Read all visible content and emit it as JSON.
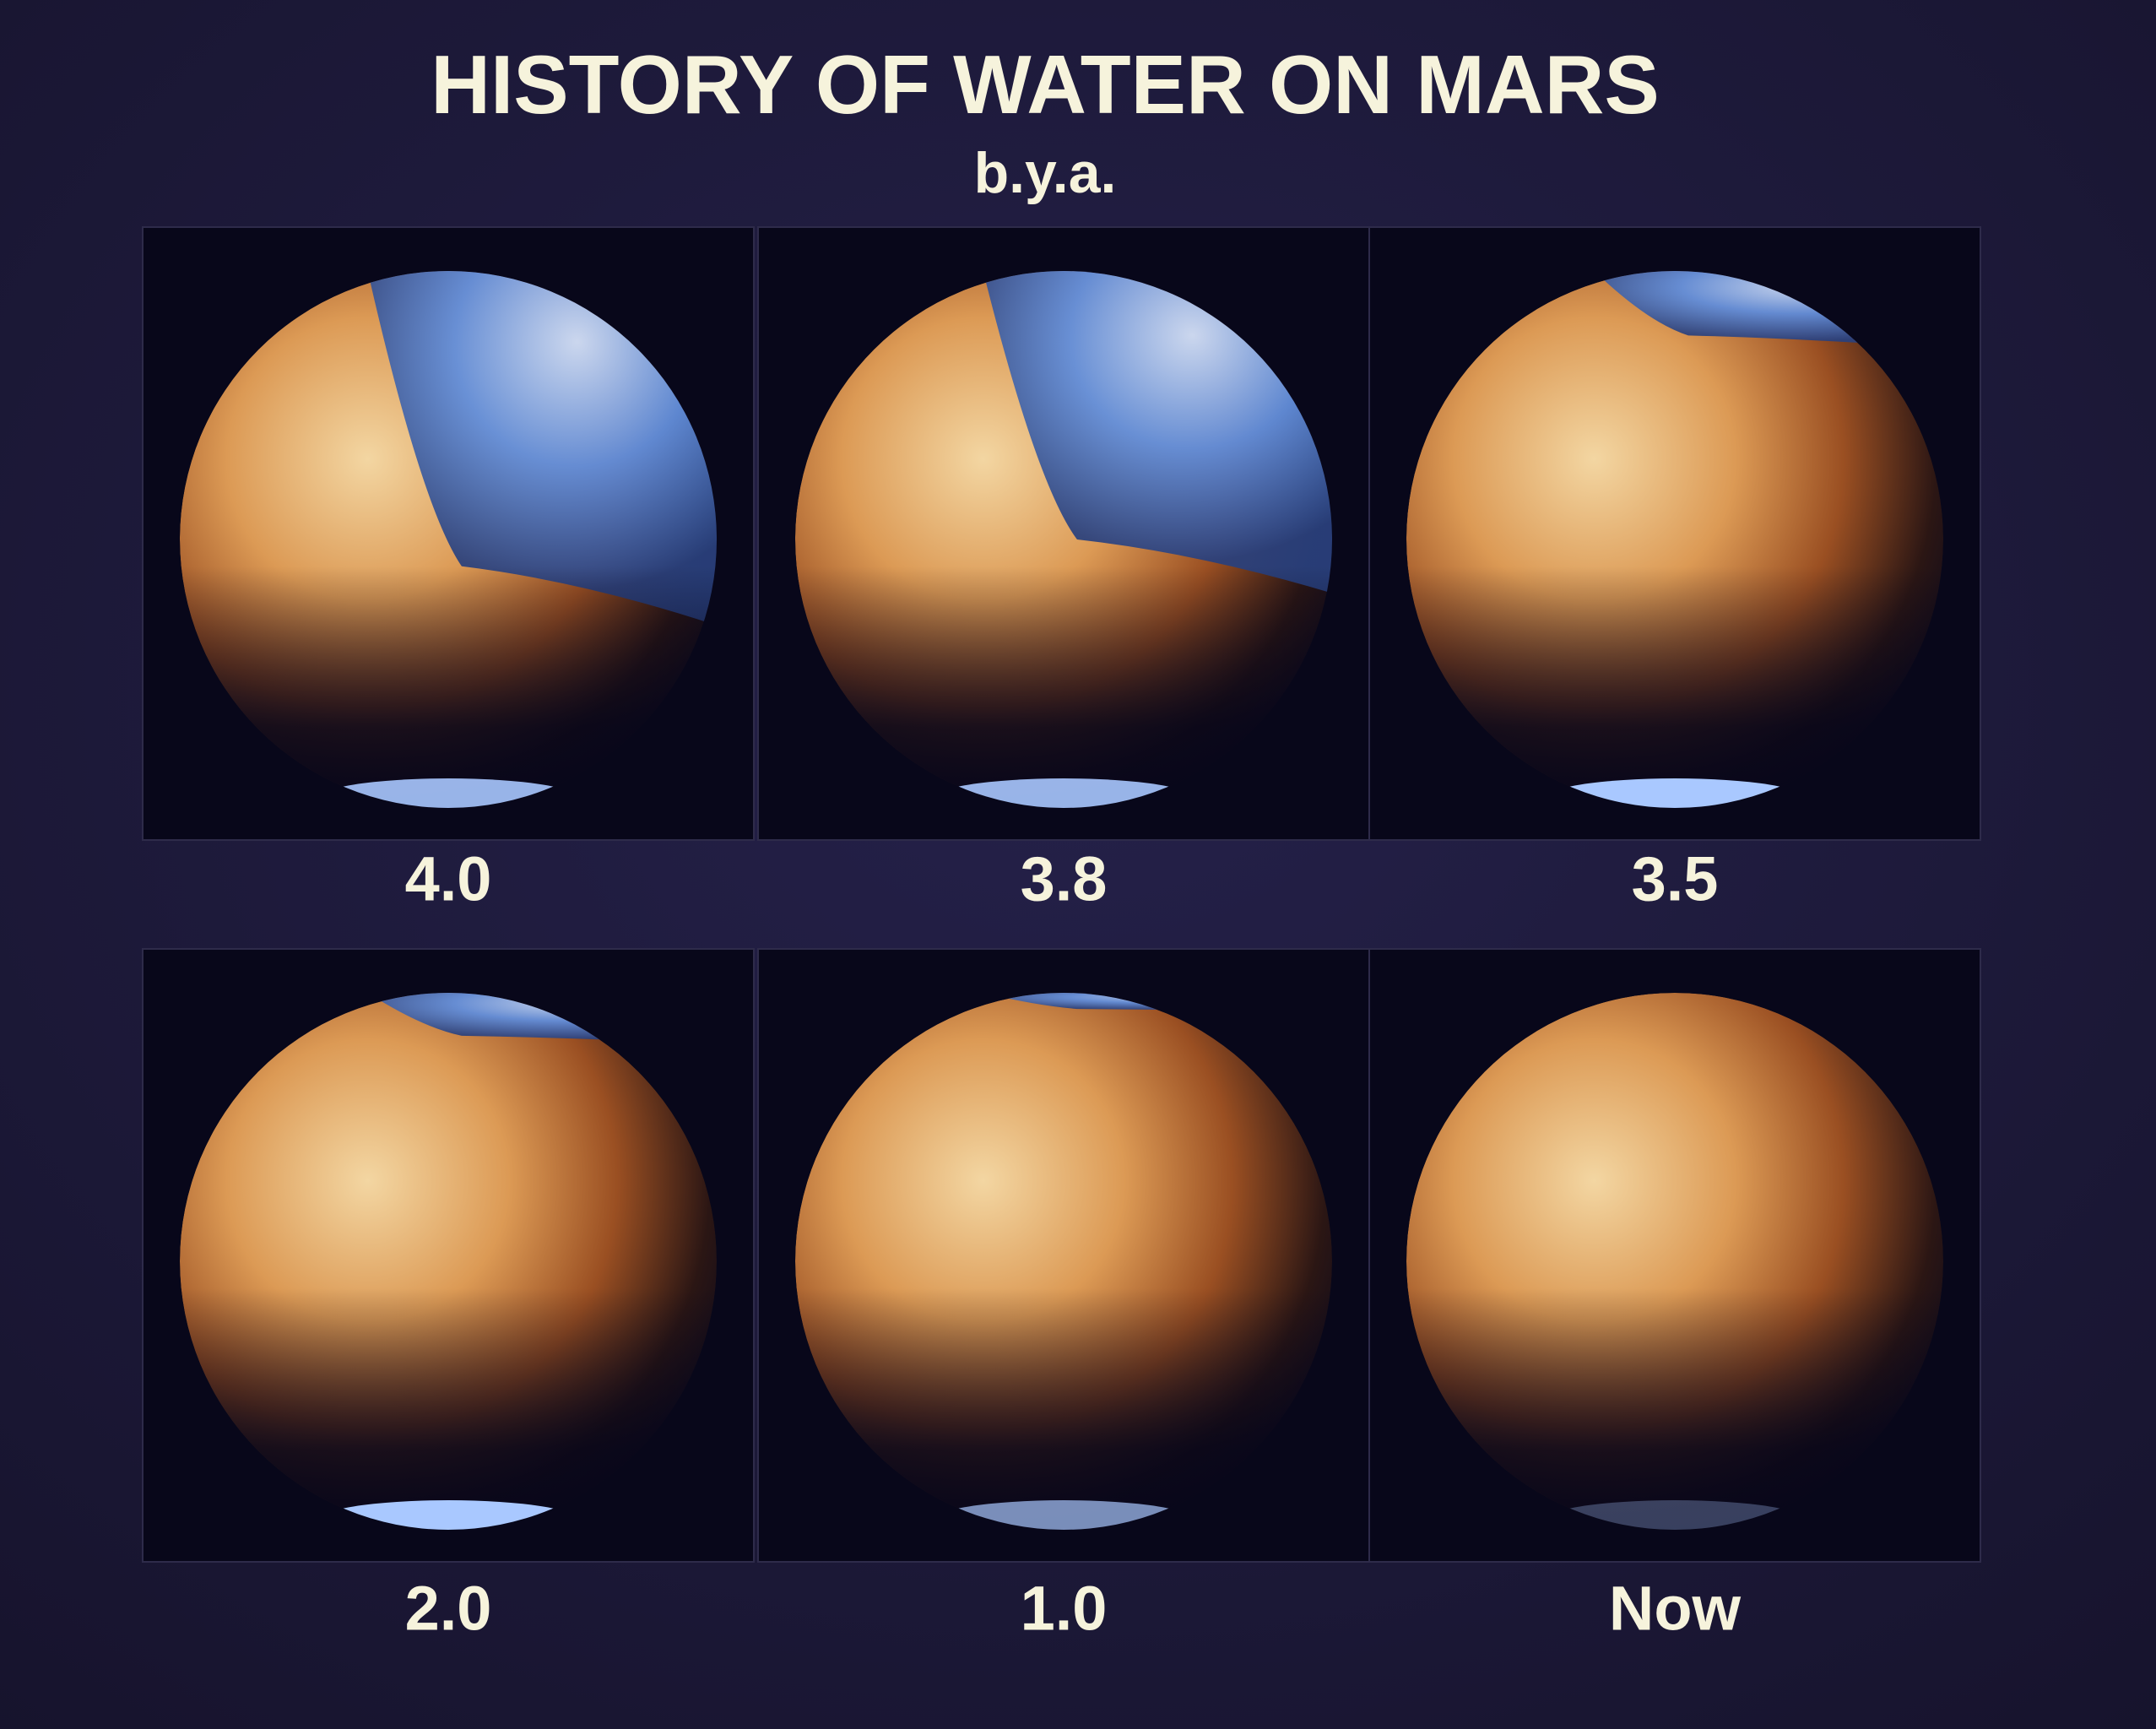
{
  "header": {
    "title": "HISTORY OF WATER ON MARS",
    "subtitle": "b.y.a."
  },
  "panels": [
    {
      "label": "4.0"
    },
    {
      "label": "3.8"
    },
    {
      "label": "3.5"
    },
    {
      "label": "2.0"
    },
    {
      "label": "1.0"
    },
    {
      "label": "Now"
    }
  ]
}
